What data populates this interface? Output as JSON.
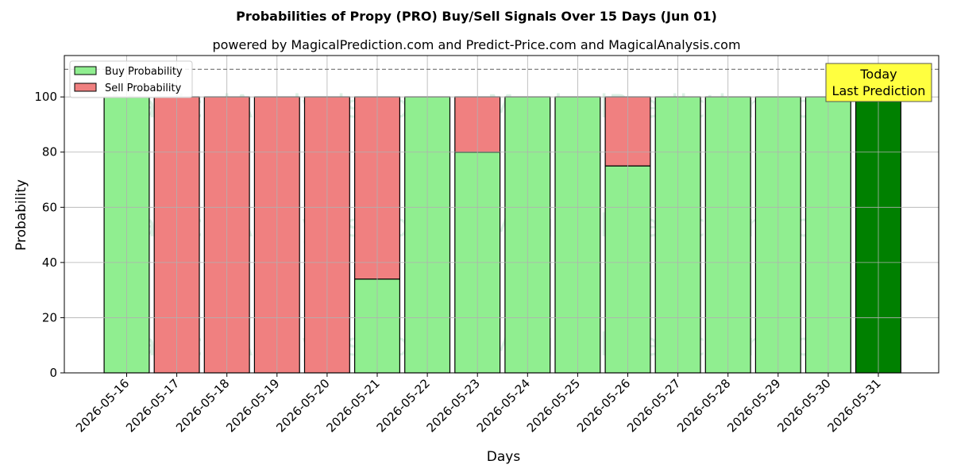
{
  "chart_data": {
    "type": "bar",
    "stacked": true,
    "title": "Probabilities of Propy (PRO) Buy/Sell Signals Over 15 Days (Jun 01)",
    "subtitle": "powered by MagicalPrediction.com and Predict-Price.com and MagicalAnalysis.com",
    "xlabel": "Days",
    "ylabel": "Probability",
    "ylim": [
      0,
      115
    ],
    "yticks": [
      0,
      20,
      40,
      60,
      80,
      100
    ],
    "reference_line": 110,
    "grid": true,
    "legend_position": "top-left",
    "categories": [
      "2026-05-16",
      "2026-05-17",
      "2026-05-18",
      "2026-05-19",
      "2026-05-20",
      "2026-05-21",
      "2026-05-22",
      "2026-05-23",
      "2026-05-24",
      "2026-05-25",
      "2026-05-26",
      "2026-05-27",
      "2026-05-28",
      "2026-05-29",
      "2026-05-30",
      "2026-05-31"
    ],
    "series": [
      {
        "name": "Buy Probability",
        "color": "#90ee90",
        "values": [
          100,
          0,
          0,
          0,
          0,
          34,
          100,
          80,
          100,
          100,
          75,
          100,
          100,
          100,
          100,
          100
        ]
      },
      {
        "name": "Sell Probability",
        "color": "#f08080",
        "values": [
          0,
          100,
          100,
          100,
          100,
          66,
          0,
          20,
          0,
          0,
          25,
          0,
          0,
          0,
          0,
          0
        ]
      }
    ],
    "highlight": {
      "index": 15,
      "color": "#008000",
      "label_lines": [
        "Today",
        "Last Prediction"
      ],
      "box_color": "#ffff40"
    },
    "watermarks": [
      "MagicalAnalysis.com",
      "MagicalPrediction.com"
    ]
  }
}
